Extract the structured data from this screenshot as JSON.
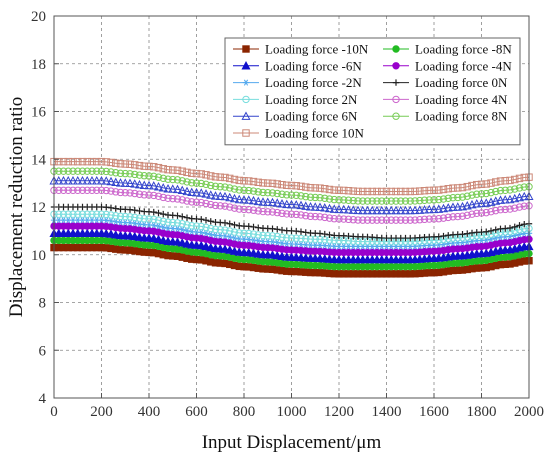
{
  "chart_data": {
    "type": "line",
    "xlabel": "Input Displacement/μm",
    "ylabel": "Displacement reduction ratio",
    "xlim": [
      0,
      2000
    ],
    "ylim": [
      4,
      20
    ],
    "xticks": [
      "0",
      "200",
      "400",
      "600",
      "800",
      "1000",
      "1200",
      "1400",
      "1600",
      "1800",
      "2000"
    ],
    "yticks": [
      "4",
      "6",
      "8",
      "10",
      "12",
      "14",
      "16",
      "18",
      "20"
    ],
    "grid": true,
    "legend_position": "top-right",
    "x": [
      0,
      100,
      200,
      300,
      400,
      500,
      600,
      700,
      800,
      900,
      1000,
      1100,
      1200,
      1300,
      1400,
      1500,
      1600,
      1700,
      1800,
      1900,
      2000
    ],
    "series": [
      {
        "name": "Loading force -10N",
        "color": "#8B2500",
        "marker": "square-filled",
        "values": [
          10.3,
          10.3,
          10.3,
          10.2,
          10.1,
          9.95,
          9.8,
          9.65,
          9.5,
          9.4,
          9.3,
          9.25,
          9.2,
          9.2,
          9.2,
          9.2,
          9.25,
          9.35,
          9.45,
          9.6,
          9.75
        ]
      },
      {
        "name": "Loading force -8N",
        "color": "#22bb22",
        "marker": "circle-filled",
        "values": [
          10.6,
          10.6,
          10.6,
          10.5,
          10.4,
          10.25,
          10.1,
          9.95,
          9.8,
          9.7,
          9.6,
          9.55,
          9.5,
          9.5,
          9.5,
          9.5,
          9.55,
          9.65,
          9.75,
          9.9,
          10.05
        ]
      },
      {
        "name": "Loading force -6N",
        "color": "#1010cc",
        "marker": "triangle-filled",
        "values": [
          10.9,
          10.9,
          10.9,
          10.8,
          10.7,
          10.55,
          10.4,
          10.25,
          10.1,
          10.0,
          9.9,
          9.85,
          9.8,
          9.8,
          9.8,
          9.8,
          9.85,
          9.95,
          10.05,
          10.2,
          10.35
        ]
      },
      {
        "name": "Loading force -4N",
        "color": "#9900cc",
        "marker": "circle-filled",
        "values": [
          11.2,
          11.2,
          11.2,
          11.1,
          11.0,
          10.85,
          10.7,
          10.55,
          10.4,
          10.3,
          10.2,
          10.15,
          10.1,
          10.1,
          10.1,
          10.1,
          10.15,
          10.25,
          10.35,
          10.5,
          10.65
        ]
      },
      {
        "name": "Loading force -2N",
        "color": "#55aaee",
        "marker": "star",
        "values": [
          11.45,
          11.45,
          11.45,
          11.35,
          11.25,
          11.1,
          10.95,
          10.8,
          10.65,
          10.55,
          10.45,
          10.4,
          10.35,
          10.35,
          10.35,
          10.35,
          10.4,
          10.5,
          10.6,
          10.75,
          10.9
        ]
      },
      {
        "name": "Loading force 0N",
        "color": "#222222",
        "marker": "plus",
        "values": [
          12.0,
          12.0,
          12.0,
          11.9,
          11.8,
          11.65,
          11.5,
          11.35,
          11.2,
          11.1,
          11.0,
          10.9,
          10.8,
          10.75,
          10.7,
          10.7,
          10.75,
          10.85,
          10.95,
          11.1,
          11.3
        ]
      },
      {
        "name": "Loading force 2N",
        "color": "#77dddd",
        "marker": "circle-open",
        "values": [
          11.7,
          11.7,
          11.7,
          11.6,
          11.5,
          11.35,
          11.2,
          11.05,
          10.9,
          10.8,
          10.7,
          10.65,
          10.6,
          10.55,
          10.55,
          10.55,
          10.6,
          10.7,
          10.8,
          10.95,
          11.1
        ]
      },
      {
        "name": "Loading force 4N",
        "color": "#cc66cc",
        "marker": "circle-open",
        "values": [
          12.7,
          12.7,
          12.7,
          12.6,
          12.5,
          12.35,
          12.2,
          12.05,
          11.9,
          11.8,
          11.7,
          11.6,
          11.5,
          11.45,
          11.45,
          11.45,
          11.5,
          11.6,
          11.75,
          11.9,
          12.05
        ]
      },
      {
        "name": "Loading force 6N",
        "color": "#3344cc",
        "marker": "triangle-open",
        "values": [
          13.1,
          13.1,
          13.1,
          13.0,
          12.9,
          12.75,
          12.6,
          12.45,
          12.3,
          12.2,
          12.1,
          12.0,
          11.9,
          11.85,
          11.85,
          11.85,
          11.9,
          12.0,
          12.15,
          12.3,
          12.45
        ]
      },
      {
        "name": "Loading force 8N",
        "color": "#77cc55",
        "marker": "circle-open",
        "values": [
          13.5,
          13.5,
          13.5,
          13.4,
          13.3,
          13.15,
          13.0,
          12.85,
          12.7,
          12.6,
          12.5,
          12.4,
          12.3,
          12.25,
          12.25,
          12.25,
          12.3,
          12.4,
          12.55,
          12.7,
          12.85
        ]
      },
      {
        "name": "Loading force 10N",
        "color": "#cc8877",
        "marker": "square-open",
        "values": [
          13.9,
          13.9,
          13.9,
          13.8,
          13.7,
          13.55,
          13.4,
          13.25,
          13.1,
          13.0,
          12.9,
          12.8,
          12.7,
          12.65,
          12.65,
          12.65,
          12.7,
          12.8,
          12.95,
          13.1,
          13.25
        ]
      }
    ],
    "legend_order": [
      0,
      1,
      2,
      3,
      4,
      5,
      6,
      7,
      8,
      9,
      10
    ]
  }
}
